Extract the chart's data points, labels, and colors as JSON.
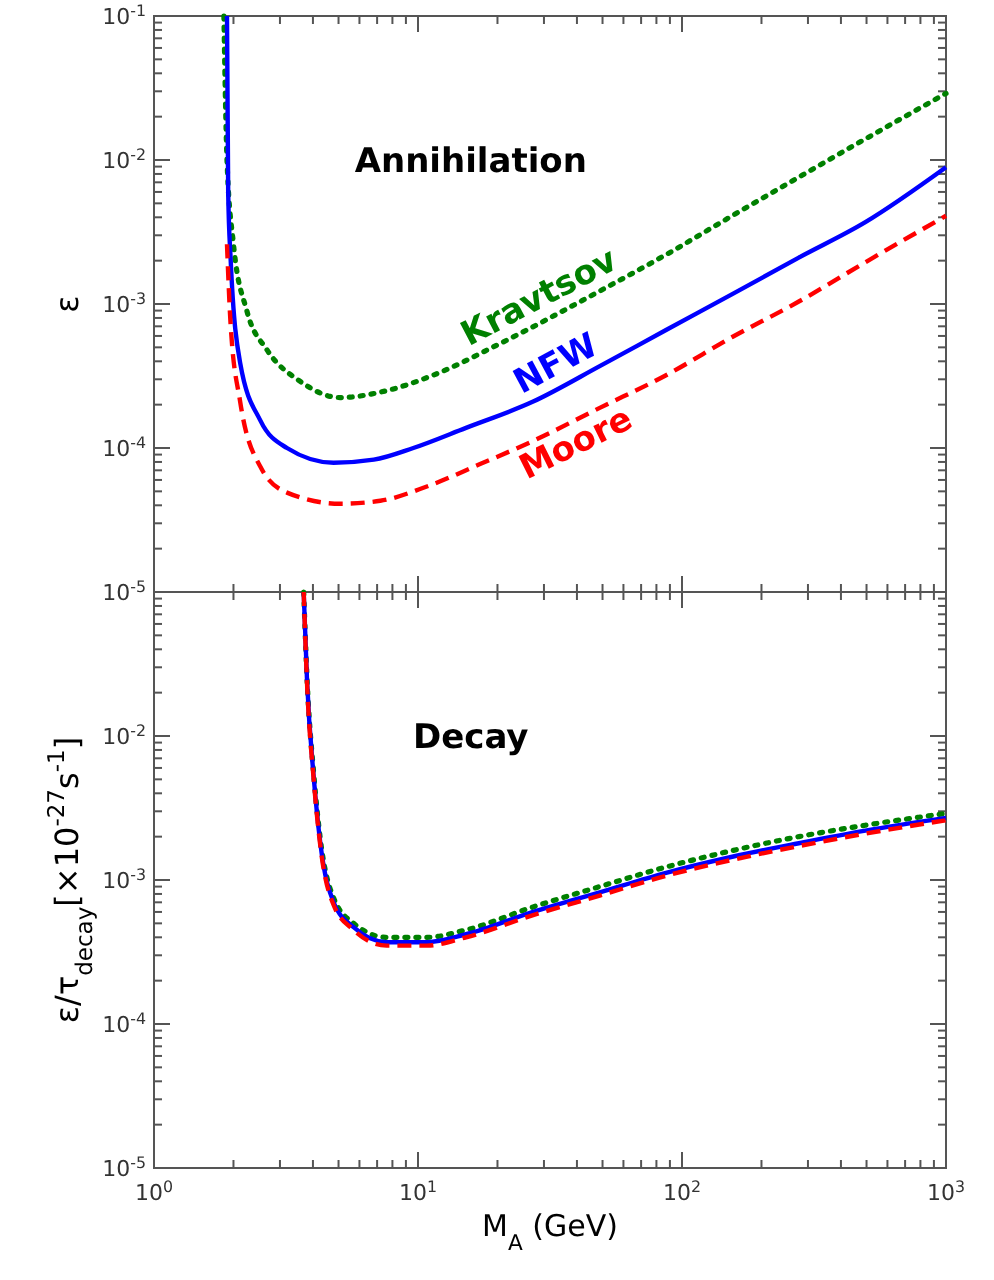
{
  "chart_data": [
    {
      "type": "line",
      "annotations": [
        "Annihilation"
      ],
      "ylabel": "ε",
      "xlim": [
        1,
        1000
      ],
      "ylim": [
        1e-05,
        0.1
      ],
      "log": "xy",
      "tick_labels": "y",
      "xticks": [
        {
          "value": 1,
          "label": null
        },
        {
          "value": 10,
          "label": null
        },
        {
          "value": 100,
          "label": null
        },
        {
          "value": 1000,
          "label": null
        }
      ],
      "yticks": [
        {
          "value": 1e-05,
          "label": "10$^{-5}$"
        },
        {
          "value": 0.0001,
          "label": "10$^{-4}$"
        },
        {
          "value": 0.001,
          "label": "10$^{-3}$"
        },
        {
          "value": 0.01,
          "label": "10$^{-2}$"
        },
        {
          "value": 0.1,
          "label": "10$^{-1}$"
        }
      ],
      "series": [
        {
          "name": "Kravtsov",
          "color": "#008000",
          "line_style": "dotted",
          "x": [
            1.84,
            1.89,
            2.0,
            2.25,
            2.68,
            3.58,
            5.07,
            7.6,
            11.4,
            20.4,
            48.8,
            87,
            155,
            277,
            495,
            1000
          ],
          "values": [
            0.1,
            0.01,
            0.0026,
            0.00089,
            0.00048,
            0.00029,
            0.000224,
            0.00025,
            0.00032,
            0.00053,
            0.00123,
            0.0022,
            0.0041,
            0.0076,
            0.014,
            0.029
          ]
        },
        {
          "name": "NFW",
          "color": "#0000ff",
          "line_style": "solid",
          "x": [
            1.89,
            1.91,
            1.95,
            2.12,
            2.53,
            3.19,
            4.79,
            6.8,
            9.6,
            15.2,
            27.3,
            48.8,
            87,
            155,
            277,
            495,
            1000
          ],
          "values": [
            0.1,
            0.0059,
            0.0021,
            0.00039,
            0.000155,
            0.0001,
            7.9e-05,
            8.3e-05,
            0.0001,
            0.000138,
            0.00021,
            0.00037,
            0.00066,
            0.00117,
            0.0021,
            0.0037,
            0.0089
          ]
        },
        {
          "name": "Moore",
          "color": "#ff0000",
          "line_style": "dashed",
          "x": [
            1.89,
            1.95,
            2.12,
            2.53,
            3.19,
            5.07,
            7.2,
            10.8,
            17.1,
            27.3,
            48.8,
            87,
            155,
            277,
            495,
            1000
          ],
          "values": [
            0.0026,
            0.00073,
            0.00021,
            7.4e-05,
            4.9e-05,
            4.1e-05,
            4.3e-05,
            5.4e-05,
            7.7e-05,
            0.000112,
            0.00019,
            0.00032,
            0.00059,
            0.00104,
            0.00195,
            0.0041
          ]
        }
      ]
    },
    {
      "type": "line",
      "annotations": [
        "Decay"
      ],
      "xlabel": "M$_{A}$ (GeV)",
      "ylabel": "ε/τ$_{decay}$[×10$^{-27}$s$^{-1}$]",
      "xlim": [
        1,
        1000
      ],
      "ylim": [
        1e-05,
        0.1
      ],
      "log": "xy",
      "xticks": [
        {
          "value": 1,
          "label": "10$^{0}$"
        },
        {
          "value": 10,
          "label": "10$^{1}$"
        },
        {
          "value": 100,
          "label": "10$^{2}$"
        },
        {
          "value": 1000,
          "label": "10$^{3}$"
        }
      ],
      "yticks": [
        {
          "value": 1e-05,
          "label": "10$^{-5}$"
        },
        {
          "value": 0.0001,
          "label": "10$^{-4}$"
        },
        {
          "value": 0.001,
          "label": "10$^{-3}$"
        },
        {
          "value": 0.01,
          "label": "10$^{-2}$"
        },
        {
          "value": 0.1,
          "label": null
        }
      ],
      "series": [
        {
          "color": "#008000",
          "line_style": "dotted",
          "x": [
            3.69,
            3.8,
            4.03,
            4.27,
            4.79,
            5.7,
            7.6,
            10.8,
            15.2,
            27.3,
            48.8,
            87,
            155,
            277,
            495,
            1000
          ],
          "values": [
            0.1,
            0.025,
            0.0054,
            0.0019,
            0.00075,
            0.0005,
            0.0004,
            0.0004,
            0.00045,
            0.00065,
            0.0009,
            0.00123,
            0.0016,
            0.002,
            0.0024,
            0.0029
          ]
        },
        {
          "color": "#0000ff",
          "line_style": "solid",
          "x": [
            3.69,
            3.8,
            4.03,
            4.27,
            4.79,
            5.7,
            7.6,
            10.8,
            15.2,
            27.3,
            48.8,
            87,
            155,
            277,
            495,
            1000
          ],
          "values": [
            0.1,
            0.024,
            0.0051,
            0.00178,
            0.0007,
            0.00047,
            0.00037,
            0.00037,
            0.00042,
            0.0006,
            0.00082,
            0.00112,
            0.00145,
            0.0018,
            0.0022,
            0.0027
          ]
        },
        {
          "color": "#ff0000",
          "line_style": "dashed",
          "x": [
            3.69,
            3.8,
            4.03,
            4.27,
            4.79,
            5.7,
            7.6,
            10.8,
            15.2,
            27.3,
            48.8,
            87,
            155,
            277,
            495,
            1000
          ],
          "values": [
            0.1,
            0.023,
            0.0049,
            0.0017,
            0.00067,
            0.00045,
            0.00035,
            0.00035,
            0.0004,
            0.00057,
            0.00078,
            0.00107,
            0.00138,
            0.00172,
            0.0021,
            0.0026
          ]
        }
      ]
    }
  ]
}
